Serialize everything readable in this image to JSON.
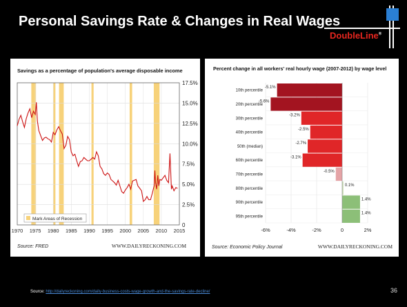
{
  "slide": {
    "title": "Personal Savings Rate & Changes in Real Wages",
    "logo_text": "DoubleLine",
    "logo_mark": "®",
    "source_label": "Source: ",
    "source_link": "http://dailyreckoning.com/daily-business-costs-wage-growth-and-the-savings-rate-decline/",
    "page_number": "36",
    "colors": {
      "background": "#000000",
      "logo_red": "#e8261f",
      "logo_blue": "#2a7fd4"
    }
  },
  "chart_data": [
    {
      "type": "line",
      "title": "Savings as a percentage of population's average disposable income",
      "xlim": [
        1970,
        2015
      ],
      "ylim": [
        0,
        17.5
      ],
      "x_ticks": [
        "1970",
        "1975",
        "1980",
        "1985",
        "1990",
        "1995",
        "2000",
        "2005",
        "2010",
        "2015"
      ],
      "y_ticks": [
        "0",
        "2.5%",
        "5.0%",
        "7.5%",
        "10.0%",
        "12.5%",
        "15.0%",
        "17.5%"
      ],
      "grid": true,
      "recessions": [
        [
          1973.9,
          1975.2
        ],
        [
          1980.0,
          1980.6
        ],
        [
          1981.6,
          1982.9
        ],
        [
          1990.6,
          1991.2
        ],
        [
          2001.2,
          2001.9
        ],
        [
          2007.9,
          2009.5
        ]
      ],
      "legend": "Mark Areas of Recession",
      "source": "Source: FRED",
      "watermark": "WWW.DAILYRECKONING.COM",
      "line_color": "#cc1111",
      "recession_color": "#f7d27a",
      "series": [
        {
          "x": [
            1970,
            1970.5,
            1971,
            1971.5,
            1972,
            1972.5,
            1973,
            1973.5,
            1974,
            1974.5,
            1975,
            1975.3,
            1975.6,
            1976,
            1976.5,
            1977,
            1977.5,
            1978,
            1978.5,
            1979,
            1979.5,
            1980,
            1980.5,
            1981,
            1981.5,
            1982,
            1982.5,
            1983,
            1983.5,
            1984,
            1984.5,
            1985,
            1985.5,
            1986,
            1986.5,
            1987,
            1987.5,
            1988,
            1988.5,
            1989,
            1989.5,
            1990,
            1990.5,
            1991,
            1991.5,
            1992,
            1992.5,
            1993,
            1993.5,
            1994,
            1994.5,
            1995,
            1995.5,
            1996,
            1996.5,
            1997,
            1997.5,
            1998,
            1998.5,
            1999,
            1999.5,
            2000,
            2000.5,
            2001,
            2001.5,
            2002,
            2002.5,
            2003,
            2003.5,
            2004,
            2004.5,
            2005,
            2005.5,
            2006,
            2006.5,
            2007,
            2007.5,
            2008,
            2008.2,
            2008.4,
            2008.7,
            2009,
            2009.3,
            2009.6,
            2010,
            2010.5,
            2011,
            2011.5,
            2012,
            2012.4,
            2012.8,
            2013,
            2013.5,
            2014,
            2014.5
          ],
          "values": [
            12.2,
            13.0,
            13.5,
            12.7,
            12.0,
            13.1,
            13.8,
            14.3,
            13.2,
            14.0,
            13.6,
            15.1,
            12.8,
            11.6,
            11.0,
            10.4,
            10.7,
            10.8,
            10.6,
            10.5,
            10.2,
            11.4,
            11.1,
            11.7,
            12.1,
            11.6,
            11.2,
            9.4,
            9.8,
            10.9,
            10.5,
            9.0,
            8.5,
            8.7,
            7.9,
            7.2,
            7.8,
            7.9,
            8.3,
            8.1,
            7.9,
            7.9,
            8.1,
            8.3,
            8.1,
            9.0,
            8.5,
            7.2,
            6.9,
            6.3,
            6.1,
            6.4,
            6.2,
            5.6,
            5.4,
            5.2,
            4.9,
            5.5,
            4.8,
            4.1,
            3.9,
            4.3,
            4.6,
            5.0,
            4.4,
            5.4,
            5.5,
            5.6,
            4.8,
            4.5,
            4.2,
            2.9,
            3.1,
            3.5,
            3.1,
            3.1,
            3.9,
            4.8,
            6.7,
            5.2,
            4.4,
            6.1,
            4.8,
            5.6,
            5.5,
            5.8,
            6.1,
            5.5,
            5.2,
            8.8,
            4.4,
            4.8,
            4.2,
            4.6,
            4.5
          ]
        }
      ]
    },
    {
      "type": "bar",
      "title": "Percent change in all workers' real hourly wage (2007-2012) by wage level",
      "categories": [
        "10th percentile",
        "20th percentile",
        "30th percentile",
        "40th percentile",
        "50th (median)",
        "60th percentile",
        "70th percentile",
        "80th percentile",
        "90th percentile",
        "95th percentile"
      ],
      "values": [
        -5.1,
        -5.6,
        -3.2,
        -2.5,
        -2.7,
        -3.1,
        -0.5,
        0.1,
        1.4,
        1.4
      ],
      "value_labels": [
        "-5.1%",
        "-5.6%",
        "-3.2%",
        "-2.5%",
        "-2.7%",
        "-3.1%",
        "-0.5%",
        "0.1%",
        "1.4%",
        "1.4%"
      ],
      "bar_colors": [
        "#a31420",
        "#a31420",
        "#e02628",
        "#e02628",
        "#e02628",
        "#e02628",
        "#e5a3a6",
        "#c9dcb4",
        "#8cbf78",
        "#8cbf78"
      ],
      "xlim": [
        -6,
        2
      ],
      "x_ticks": [
        "-6%",
        "-4%",
        "-2%",
        "0",
        "2%"
      ],
      "grid": true,
      "source": "Source: Economic Policy Journal",
      "watermark": "WWW.DAILYRECKONING.COM"
    }
  ]
}
